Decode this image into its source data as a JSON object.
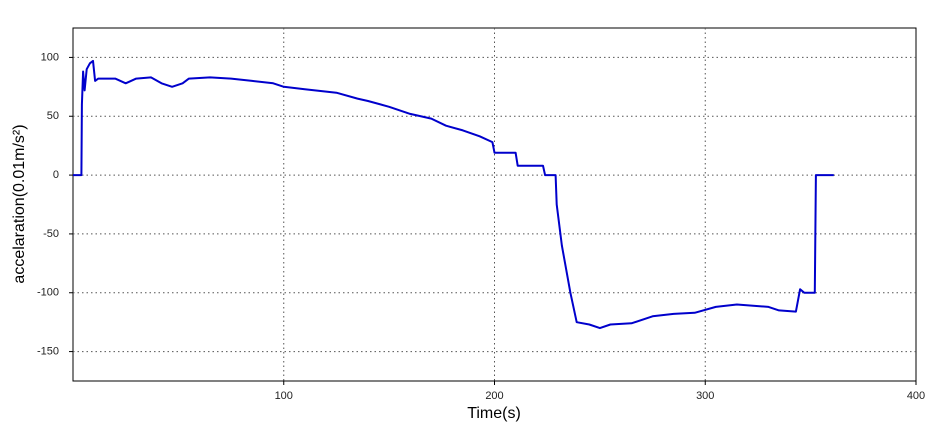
{
  "chart_data": {
    "type": "line",
    "xlabel": "Time(s)",
    "ylabel": "accelaration(0.01m/s²)",
    "x": [
      0,
      4,
      4.2,
      4.8,
      5.5,
      6.5,
      8,
      9.5,
      10.5,
      12,
      20,
      25,
      30,
      37,
      42,
      47,
      52,
      55,
      65,
      75,
      85,
      95,
      100,
      110,
      125,
      135,
      140,
      150,
      160,
      170,
      177,
      185,
      193,
      199,
      200,
      210,
      211,
      223,
      224,
      229,
      229.5,
      232,
      236,
      239,
      245,
      250,
      255,
      265,
      275,
      285,
      295,
      305,
      315,
      330,
      335,
      343,
      345,
      347,
      352,
      352.5,
      361
    ],
    "values": [
      0,
      0,
      60,
      88,
      72,
      90,
      95,
      97,
      80,
      82,
      82,
      78,
      82,
      83,
      78,
      75,
      78,
      82,
      83,
      82,
      80,
      78,
      75,
      73,
      70,
      65,
      63,
      58,
      52,
      48,
      42,
      38,
      33,
      28,
      19,
      19,
      8,
      8,
      0,
      0,
      -25,
      -60,
      -100,
      -125,
      -127,
      -130,
      -127,
      -126,
      -120,
      -118,
      -117,
      -112,
      -110,
      -112,
      -115,
      -116,
      -97,
      -100,
      -100,
      0,
      0
    ],
    "color": "#0000cc",
    "xlim": [
      0,
      400
    ],
    "xticks": [
      100,
      200,
      300,
      400
    ],
    "ylim": [
      -175,
      125
    ],
    "yticks": [
      -150,
      -100,
      -50,
      0,
      50,
      100
    ],
    "grid": true
  }
}
